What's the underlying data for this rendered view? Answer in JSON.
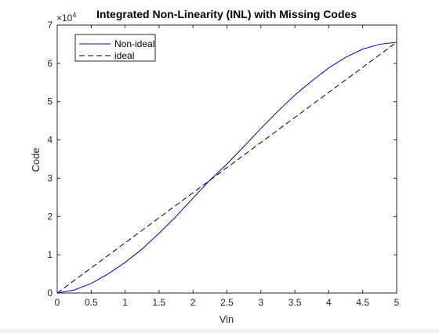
{
  "chart_data": {
    "type": "line",
    "title": "Integrated Non-Linearity (INL) with Missing Codes",
    "xlabel": "Vin",
    "ylabel": "Code",
    "xlim": [
      0,
      5
    ],
    "ylim": [
      0,
      70000
    ],
    "y_exponent_label": "×10",
    "y_exponent_power": "4",
    "x_ticks": [
      0,
      0.5,
      1,
      1.5,
      2,
      2.5,
      3,
      3.5,
      4,
      4.5,
      5
    ],
    "x_tick_labels": [
      "0",
      "0.5",
      "1",
      "1.5",
      "2",
      "2.5",
      "3",
      "3.5",
      "4",
      "4.5",
      "5"
    ],
    "y_ticks": [
      0,
      10000,
      20000,
      30000,
      40000,
      50000,
      60000,
      70000
    ],
    "y_tick_labels": [
      "0",
      "1",
      "2",
      "3",
      "4",
      "5",
      "6",
      "7"
    ],
    "grid": false,
    "legend_position": "top-left",
    "series": [
      {
        "name": "Non-ideal",
        "color": "#0000cc",
        "style": "solid",
        "x": [
          0,
          0.25,
          0.5,
          0.75,
          1,
          1.25,
          1.5,
          1.75,
          2,
          2.25,
          2.5,
          2.75,
          3,
          3.25,
          3.5,
          3.75,
          4,
          4.25,
          4.5,
          4.75,
          5
        ],
        "y": [
          0,
          800,
          2500,
          5000,
          8000,
          11500,
          15600,
          20000,
          24800,
          29500,
          33700,
          38300,
          43000,
          47500,
          51700,
          55400,
          58800,
          61600,
          63700,
          65000,
          65500
        ]
      },
      {
        "name": "ideal",
        "color": "#000000",
        "style": "dashed",
        "x": [
          0,
          5
        ],
        "y": [
          0,
          65535
        ]
      }
    ]
  }
}
